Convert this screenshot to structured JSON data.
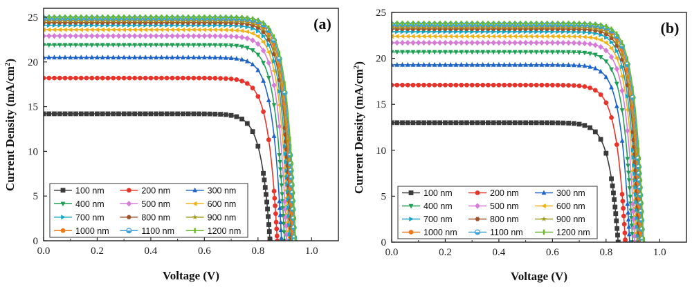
{
  "chart_data": [
    {
      "type": "line",
      "panel_label": "(a)",
      "xlabel": "Voltage (V)",
      "ylabel": "Current Density (mA/cm²)",
      "ylabel_base": "Current Density (mA/cm",
      "ylabel_sup": "2",
      "ylabel_close": ")",
      "xlim": [
        0.0,
        1.1
      ],
      "ylim": [
        0,
        26
      ],
      "xticks": [
        "0.0",
        "0.2",
        "0.4",
        "0.6",
        "0.8",
        "1.0"
      ],
      "yticks": [
        "0",
        "5",
        "10",
        "15",
        "20",
        "25"
      ],
      "series": [
        {
          "name": "100 nm",
          "jsc": 14.2,
          "voc": 0.845,
          "color": "#3a3a3a",
          "marker": "square"
        },
        {
          "name": "200 nm",
          "jsc": 18.2,
          "voc": 0.872,
          "color": "#e8332a",
          "marker": "circle"
        },
        {
          "name": "300 nm",
          "jsc": 20.5,
          "voc": 0.888,
          "color": "#1f64c8",
          "marker": "triangle-up"
        },
        {
          "name": "400 nm",
          "jsc": 21.9,
          "voc": 0.899,
          "color": "#1f9e55",
          "marker": "triangle-down"
        },
        {
          "name": "500 nm",
          "jsc": 22.9,
          "voc": 0.907,
          "color": "#d77ad8",
          "marker": "diamond"
        },
        {
          "name": "600 nm",
          "jsc": 23.6,
          "voc": 0.914,
          "color": "#f0b21a",
          "marker": "triangle-left"
        },
        {
          "name": "700 nm",
          "jsc": 24.1,
          "voc": 0.919,
          "color": "#1aa7c4",
          "marker": "triangle-right"
        },
        {
          "name": "800 nm",
          "jsc": 24.4,
          "voc": 0.924,
          "color": "#a0522d",
          "marker": "hexagon"
        },
        {
          "name": "900 nm",
          "jsc": 24.6,
          "voc": 0.928,
          "color": "#9c9a1a",
          "marker": "star"
        },
        {
          "name": "1000 nm",
          "jsc": 24.8,
          "voc": 0.932,
          "color": "#f07a16",
          "marker": "circle"
        },
        {
          "name": "1100 nm",
          "jsc": 24.9,
          "voc": 0.936,
          "color": "#3aa0d8",
          "marker": "half-circle"
        },
        {
          "name": "1200 nm",
          "jsc": 25.0,
          "voc": 0.94,
          "color": "#6ab82a",
          "marker": "bar"
        }
      ]
    },
    {
      "type": "line",
      "panel_label": "(b)",
      "xlabel": "Voltage (V)",
      "ylabel": "Current Density (mA/cm²)",
      "ylabel_base": "Current Density (mA/cm",
      "ylabel_sup": "2",
      "ylabel_close": ")",
      "xlim": [
        0.0,
        1.1
      ],
      "ylim": [
        0,
        25
      ],
      "xticks": [
        "0.0",
        "0.2",
        "0.4",
        "0.6",
        "0.8",
        "1.0"
      ],
      "yticks": [
        "0",
        "5",
        "10",
        "15",
        "20",
        "25"
      ],
      "series": [
        {
          "name": "100 nm",
          "jsc": 13.0,
          "voc": 0.845,
          "color": "#3a3a3a",
          "marker": "square"
        },
        {
          "name": "200 nm",
          "jsc": 17.1,
          "voc": 0.872,
          "color": "#e8332a",
          "marker": "circle"
        },
        {
          "name": "300 nm",
          "jsc": 19.3,
          "voc": 0.888,
          "color": "#1f64c8",
          "marker": "triangle-up"
        },
        {
          "name": "400 nm",
          "jsc": 20.7,
          "voc": 0.899,
          "color": "#1f9e55",
          "marker": "triangle-down"
        },
        {
          "name": "500 nm",
          "jsc": 21.7,
          "voc": 0.907,
          "color": "#d77ad8",
          "marker": "diamond"
        },
        {
          "name": "600 nm",
          "jsc": 22.4,
          "voc": 0.914,
          "color": "#f0b21a",
          "marker": "triangle-left"
        },
        {
          "name": "700 nm",
          "jsc": 22.9,
          "voc": 0.919,
          "color": "#1aa7c4",
          "marker": "triangle-right"
        },
        {
          "name": "800 nm",
          "jsc": 23.2,
          "voc": 0.924,
          "color": "#a0522d",
          "marker": "hexagon"
        },
        {
          "name": "900 nm",
          "jsc": 23.4,
          "voc": 0.928,
          "color": "#9c9a1a",
          "marker": "star"
        },
        {
          "name": "1000 nm",
          "jsc": 23.6,
          "voc": 0.932,
          "color": "#f07a16",
          "marker": "circle"
        },
        {
          "name": "1100 nm",
          "jsc": 23.7,
          "voc": 0.936,
          "color": "#3aa0d8",
          "marker": "half-circle"
        },
        {
          "name": "1200 nm",
          "jsc": 23.8,
          "voc": 0.94,
          "color": "#6ab82a",
          "marker": "bar"
        }
      ]
    }
  ]
}
